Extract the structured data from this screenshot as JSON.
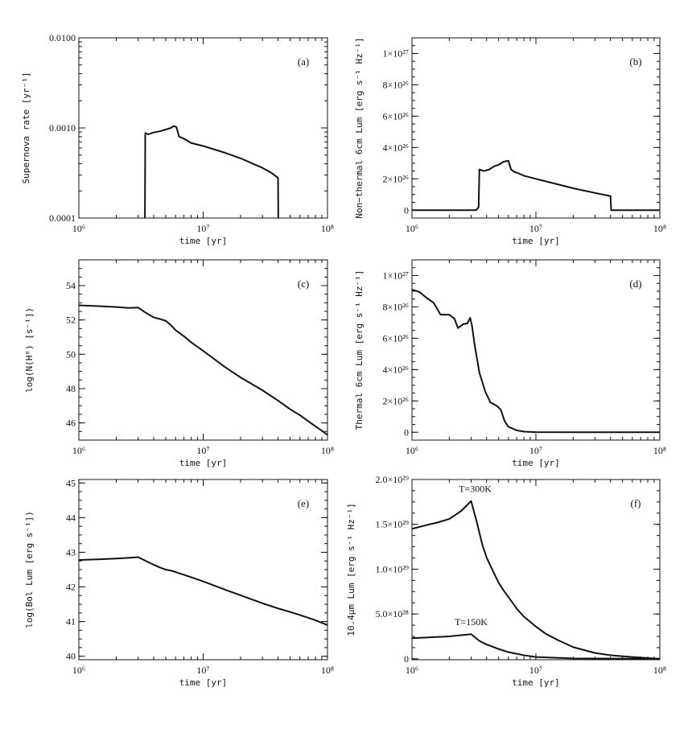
{
  "chart_data": [
    {
      "id": "a",
      "type": "line",
      "panel_label": "(a)",
      "xlabel": "time [yr]",
      "ylabel": "Supernova rate [yr⁻¹]",
      "xscale": "log",
      "yscale": "log",
      "xlim": [
        1000000,
        100000000
      ],
      "ylim": [
        0.0001,
        0.01
      ],
      "xticks": [
        {
          "v": 1000000,
          "label": "10⁶"
        },
        {
          "v": 10000000,
          "label": "10⁷"
        },
        {
          "v": 100000000,
          "label": "10⁸"
        }
      ],
      "yticks": [
        {
          "v": 0.0001,
          "label": "0.0001"
        },
        {
          "v": 0.001,
          "label": "0.0010"
        },
        {
          "v": 0.01,
          "label": "0.0100"
        }
      ],
      "series": [
        {
          "name": "SN rate",
          "points": [
            [
              3400000,
              0.0001
            ],
            [
              3420000,
              0.00088
            ],
            [
              3600000,
              0.00085
            ],
            [
              4000000,
              0.00089
            ],
            [
              4500000,
              0.00092
            ],
            [
              5000000,
              0.00096
            ],
            [
              5500000,
              0.001
            ],
            [
              5800000,
              0.00105
            ],
            [
              6100000,
              0.00102
            ],
            [
              6400000,
              0.0008
            ],
            [
              6700000,
              0.00078
            ],
            [
              7000000,
              0.00076
            ],
            [
              8000000,
              0.00068
            ],
            [
              10000000,
              0.00063
            ],
            [
              15000000,
              0.00053
            ],
            [
              20000000,
              0.00046
            ],
            [
              30000000,
              0.00036
            ],
            [
              35000000,
              0.00032
            ],
            [
              40000000,
              0.00028
            ],
            [
              40200000,
              0.0001
            ]
          ]
        }
      ],
      "annotations": []
    },
    {
      "id": "b",
      "type": "line",
      "panel_label": "(b)",
      "xlabel": "time [yr]",
      "ylabel": "Non−thermal 6cm Lum [erg s⁻¹ Hz⁻¹]",
      "xscale": "log",
      "yscale": "linear",
      "xlim": [
        1000000,
        100000000
      ],
      "ylim": [
        -5e+25,
        1.1e+27
      ],
      "xticks": [
        {
          "v": 1000000,
          "label": "10⁶"
        },
        {
          "v": 10000000,
          "label": "10⁷"
        },
        {
          "v": 100000000,
          "label": "10⁸"
        }
      ],
      "yticks": [
        {
          "v": 0,
          "label": "0"
        },
        {
          "v": 2e+26,
          "label": "2×10²⁶"
        },
        {
          "v": 4e+26,
          "label": "4×10²⁶"
        },
        {
          "v": 6e+26,
          "label": "6×10²⁶"
        },
        {
          "v": 8e+26,
          "label": "8×10²⁶"
        },
        {
          "v": 1e+27,
          "label": "1×10²⁷"
        }
      ],
      "series": [
        {
          "name": "Non-thermal 6cm",
          "points": [
            [
              1000000,
              0
            ],
            [
              3300000,
              0
            ],
            [
              3450000,
              2e+25
            ],
            [
              3500000,
              2.6e+26
            ],
            [
              3800000,
              2.5e+26
            ],
            [
              4200000,
              2.6e+26
            ],
            [
              4600000,
              2.8e+26
            ],
            [
              5000000,
              2.9e+26
            ],
            [
              5500000,
              3.1e+26
            ],
            [
              6000000,
              3.15e+26
            ],
            [
              6300000,
              2.6e+26
            ],
            [
              6700000,
              2.45e+26
            ],
            [
              7000000,
              2.4e+26
            ],
            [
              8000000,
              2.2e+26
            ],
            [
              10000000,
              2e+26
            ],
            [
              15000000,
              1.65e+26
            ],
            [
              20000000,
              1.4e+26
            ],
            [
              30000000,
              1.1e+26
            ],
            [
              40000000,
              9e+25
            ],
            [
              40500000,
              0
            ],
            [
              100000000,
              0
            ]
          ]
        }
      ],
      "annotations": []
    },
    {
      "id": "c",
      "type": "line",
      "panel_label": "(c)",
      "xlabel": "time [yr]",
      "ylabel": "log(N(H⁰) [s⁻¹])",
      "xscale": "log",
      "yscale": "linear",
      "xlim": [
        1000000,
        100000000
      ],
      "ylim": [
        45,
        55.5
      ],
      "xticks": [
        {
          "v": 1000000,
          "label": "10⁶"
        },
        {
          "v": 10000000,
          "label": "10⁷"
        },
        {
          "v": 100000000,
          "label": "10⁸"
        }
      ],
      "yticks": [
        {
          "v": 46,
          "label": "46"
        },
        {
          "v": 48,
          "label": "48"
        },
        {
          "v": 50,
          "label": "50"
        },
        {
          "v": 52,
          "label": "52"
        },
        {
          "v": 54,
          "label": "54"
        }
      ],
      "series": [
        {
          "name": "log N(H0)",
          "points": [
            [
              1000000,
              52.85
            ],
            [
              1500000,
              52.8
            ],
            [
              2000000,
              52.75
            ],
            [
              2500000,
              52.7
            ],
            [
              3000000,
              52.72
            ],
            [
              3400000,
              52.45
            ],
            [
              4000000,
              52.15
            ],
            [
              4500000,
              52.05
            ],
            [
              5000000,
              51.95
            ],
            [
              5500000,
              51.7
            ],
            [
              6000000,
              51.4
            ],
            [
              7000000,
              51.05
            ],
            [
              8000000,
              50.7
            ],
            [
              10000000,
              50.2
            ],
            [
              15000000,
              49.25
            ],
            [
              20000000,
              48.65
            ],
            [
              30000000,
              47.9
            ],
            [
              40000000,
              47.3
            ],
            [
              50000000,
              46.8
            ],
            [
              60000000,
              46.45
            ],
            [
              70000000,
              46.1
            ],
            [
              80000000,
              45.8
            ],
            [
              90000000,
              45.55
            ],
            [
              100000000,
              45.3
            ]
          ]
        }
      ],
      "annotations": []
    },
    {
      "id": "d",
      "type": "line",
      "panel_label": "(d)",
      "xlabel": "time [yr]",
      "ylabel": "Thermal 6cm Lum [erg s⁻¹ Hz⁻¹]",
      "xscale": "log",
      "yscale": "linear",
      "xlim": [
        1000000,
        100000000
      ],
      "ylim": [
        -5e+25,
        1.1e+27
      ],
      "xticks": [
        {
          "v": 1000000,
          "label": "10⁶"
        },
        {
          "v": 10000000,
          "label": "10⁷"
        },
        {
          "v": 100000000,
          "label": "10⁸"
        }
      ],
      "yticks": [
        {
          "v": 0,
          "label": "0"
        },
        {
          "v": 2e+26,
          "label": "2×10²⁶"
        },
        {
          "v": 4e+26,
          "label": "4×10²⁶"
        },
        {
          "v": 6e+26,
          "label": "6×10²⁶"
        },
        {
          "v": 8e+26,
          "label": "8×10²⁶"
        },
        {
          "v": 1e+27,
          "label": "1×10²⁷"
        }
      ],
      "series": [
        {
          "name": "Thermal 6cm",
          "points": [
            [
              1000000,
              9.1e+26
            ],
            [
              1150000,
              8.95e+26
            ],
            [
              1300000,
              8.6e+26
            ],
            [
              1500000,
              8.25e+26
            ],
            [
              1700000,
              7.5e+26
            ],
            [
              2000000,
              7.5e+26
            ],
            [
              2200000,
              7.25e+26
            ],
            [
              2350000,
              6.65e+26
            ],
            [
              2600000,
              6.9e+26
            ],
            [
              2800000,
              6.95e+26
            ],
            [
              2950000,
              7.3e+26
            ],
            [
              3050000,
              6.8e+26
            ],
            [
              3200000,
              5.6e+26
            ],
            [
              3500000,
              3.8e+26
            ],
            [
              3900000,
              2.6e+26
            ],
            [
              4300000,
              1.9e+26
            ],
            [
              4800000,
              1.7e+26
            ],
            [
              5200000,
              1.45e+26
            ],
            [
              5600000,
              7e+25
            ],
            [
              6000000,
              3.5e+25
            ],
            [
              7000000,
              1.2e+25
            ],
            [
              8000000,
              4e+24
            ],
            [
              10000000,
              1e+24
            ],
            [
              20000000,
              0
            ],
            [
              100000000,
              0
            ]
          ]
        }
      ],
      "annotations": []
    },
    {
      "id": "e",
      "type": "line",
      "panel_label": "(e)",
      "xlabel": "time [yr]",
      "ylabel": "log(Bol Lum [erg s⁻¹])",
      "xscale": "log",
      "yscale": "linear",
      "xlim": [
        1000000,
        100000000
      ],
      "ylim": [
        39.9,
        45.1
      ],
      "xticks": [
        {
          "v": 1000000,
          "label": "10⁶"
        },
        {
          "v": 10000000,
          "label": "10⁷"
        },
        {
          "v": 100000000,
          "label": "10⁸"
        }
      ],
      "yticks": [
        {
          "v": 40,
          "label": "40"
        },
        {
          "v": 41,
          "label": "41"
        },
        {
          "v": 42,
          "label": "42"
        },
        {
          "v": 43,
          "label": "43"
        },
        {
          "v": 44,
          "label": "44"
        },
        {
          "v": 45,
          "label": "45"
        }
      ],
      "series": [
        {
          "name": "log Bol Lum",
          "points": [
            [
              1000000,
              42.78
            ],
            [
              1500000,
              42.8
            ],
            [
              2000000,
              42.82
            ],
            [
              2500000,
              42.84
            ],
            [
              3000000,
              42.86
            ],
            [
              3500000,
              42.74
            ],
            [
              4000000,
              42.64
            ],
            [
              4500000,
              42.56
            ],
            [
              5000000,
              42.5
            ],
            [
              5500000,
              42.47
            ],
            [
              6000000,
              42.43
            ],
            [
              7000000,
              42.35
            ],
            [
              8000000,
              42.28
            ],
            [
              10000000,
              42.16
            ],
            [
              15000000,
              41.92
            ],
            [
              20000000,
              41.76
            ],
            [
              30000000,
              41.53
            ],
            [
              40000000,
              41.38
            ],
            [
              50000000,
              41.28
            ],
            [
              60000000,
              41.19
            ],
            [
              80000000,
              41.04
            ],
            [
              100000000,
              40.9
            ]
          ]
        }
      ],
      "annotations": []
    },
    {
      "id": "f",
      "type": "line",
      "panel_label": "(f)",
      "xlabel": "time [yr]",
      "ylabel": "10.4μm Lum [erg s⁻¹ Hz⁻¹]",
      "xscale": "log",
      "yscale": "linear",
      "xlim": [
        1000000,
        100000000
      ],
      "ylim": [
        -1e+27,
        2e+29
      ],
      "xticks": [
        {
          "v": 1000000,
          "label": "10⁶"
        },
        {
          "v": 10000000,
          "label": "10⁷"
        },
        {
          "v": 100000000,
          "label": "10⁸"
        }
      ],
      "yticks": [
        {
          "v": 0,
          "label": "0"
        },
        {
          "v": 5e+28,
          "label": "5.0×10²⁸"
        },
        {
          "v": 1e+29,
          "label": "1.0×10²⁹"
        },
        {
          "v": 1.5e+29,
          "label": "1.5×10²⁹"
        },
        {
          "v": 2e+29,
          "label": "2.0×10²⁹"
        }
      ],
      "series": [
        {
          "name": "T=300K",
          "points": [
            [
              1000000,
              1.45e+29
            ],
            [
              1300000,
              1.49e+29
            ],
            [
              1600000,
              1.52e+29
            ],
            [
              2000000,
              1.56e+29
            ],
            [
              2500000,
              1.65e+29
            ],
            [
              3000000,
              1.76e+29
            ],
            [
              3300000,
              1.55e+29
            ],
            [
              3700000,
              1.27e+29
            ],
            [
              4000000,
              1.13e+29
            ],
            [
              4500000,
              9.8e+28
            ],
            [
              5000000,
              8.5e+28
            ],
            [
              5500000,
              7.6e+28
            ],
            [
              6000000,
              6.9e+28
            ],
            [
              7000000,
              5.6e+28
            ],
            [
              8000000,
              4.7e+28
            ],
            [
              10000000,
              3.6e+28
            ],
            [
              12000000,
              2.8e+28
            ],
            [
              15000000,
              2.1e+28
            ],
            [
              20000000,
              1.3e+28
            ],
            [
              30000000,
              6.5e+27
            ],
            [
              40000000,
              4e+27
            ],
            [
              60000000,
              2e+27
            ],
            [
              100000000,
              0
            ]
          ]
        },
        {
          "name": "T=150K",
          "points": [
            [
              1000000,
              2.3e+28
            ],
            [
              2000000,
              2.5e+28
            ],
            [
              3000000,
              2.75e+28
            ],
            [
              3500000,
              2e+28
            ],
            [
              4000000,
              1.6e+28
            ],
            [
              5000000,
              1.1e+28
            ],
            [
              6000000,
              7.5e+27
            ],
            [
              8000000,
              4e+27
            ],
            [
              10000000,
              2e+27
            ],
            [
              20000000,
              5e+26
            ],
            [
              100000000,
              0
            ]
          ]
        }
      ],
      "annotations": [
        {
          "text": "T=300K",
          "x": 3000000,
          "y": 1.76e+29
        },
        {
          "text": "T=150K",
          "x": 3000000,
          "y": 2.75e+28
        }
      ]
    }
  ]
}
